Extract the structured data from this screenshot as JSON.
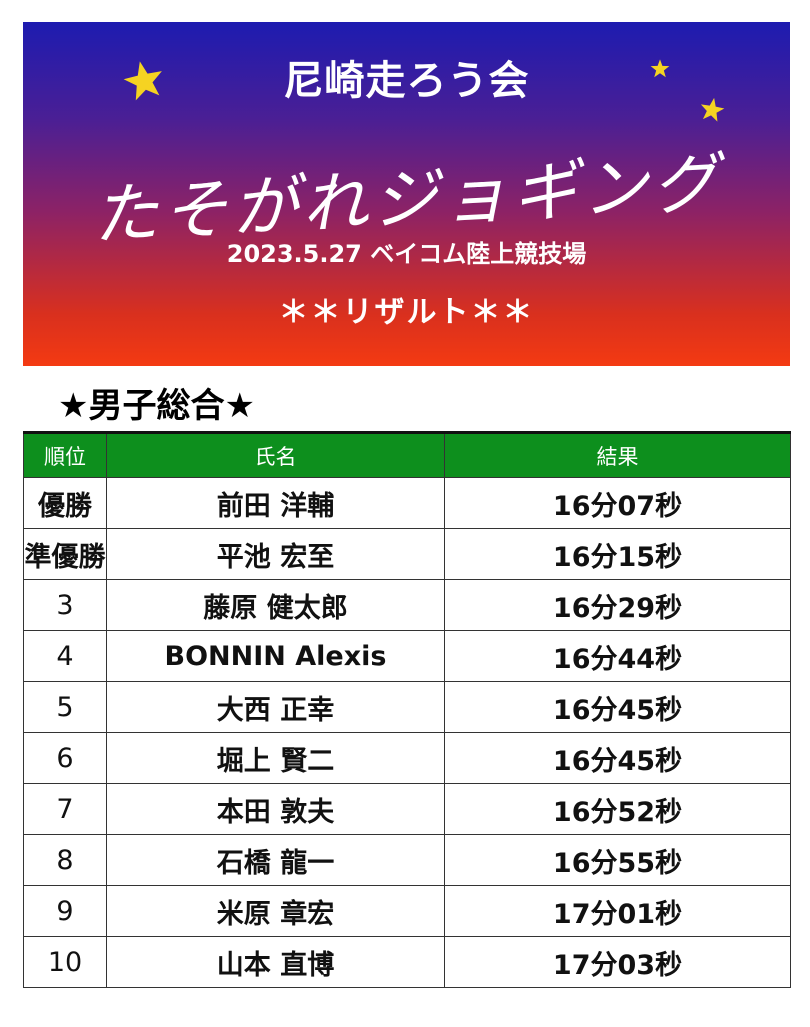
{
  "header": {
    "organization": "尼崎走ろう会",
    "event_name": "たそがれジョギング",
    "date_venue": "2023.5.27 ベイコム陸上競技場",
    "results_title": "＊＊リザルト＊＊",
    "star_color": "#f5d322"
  },
  "section": {
    "title": "★男子総合★"
  },
  "table": {
    "headers": {
      "rank": "順位",
      "name": "氏名",
      "result": "結果"
    },
    "header_color": "#0d8f1d",
    "rows": [
      {
        "rank": "優勝",
        "name": "前田 洋輔",
        "result": "16分07秒"
      },
      {
        "rank": "準優勝",
        "name": "平池 宏至",
        "result": "16分15秒"
      },
      {
        "rank": "3",
        "name": "藤原 健太郎",
        "result": "16分29秒"
      },
      {
        "rank": "4",
        "name": "BONNIN Alexis",
        "result": "16分44秒"
      },
      {
        "rank": "5",
        "name": "大西 正幸",
        "result": "16分45秒"
      },
      {
        "rank": "6",
        "name": "堀上 賢二",
        "result": "16分45秒"
      },
      {
        "rank": "7",
        "name": "本田 敦夫",
        "result": "16分52秒"
      },
      {
        "rank": "8",
        "name": "石橋 龍一",
        "result": "16分55秒"
      },
      {
        "rank": "9",
        "name": "米原 章宏",
        "result": "17分01秒"
      },
      {
        "rank": "10",
        "name": "山本 直博",
        "result": "17分03秒"
      }
    ]
  }
}
